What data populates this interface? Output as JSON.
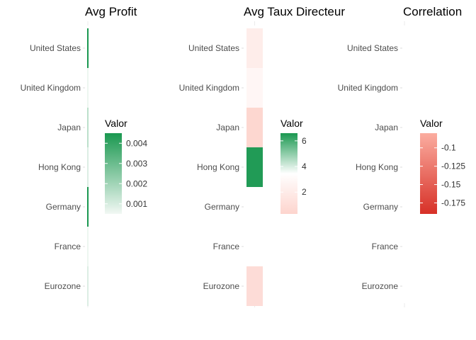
{
  "chart_data": [
    {
      "type": "heatmap",
      "title": "Avg Profit",
      "xlabel": "",
      "ylabel": "",
      "categories": [
        "United States",
        "United Kingdom",
        "Japan",
        "Hong Kong",
        "Germany",
        "France",
        "Eurozone"
      ],
      "values": [
        0.0045,
        0.0006,
        0.0015,
        0.0009,
        0.0045,
        0.0006,
        0.0009
      ],
      "legend": {
        "title": "Valor",
        "ticks": [
          0.001,
          0.002,
          0.003,
          0.004
        ],
        "range": [
          0.0005,
          0.0045
        ],
        "colors": [
          "#f2f8f4",
          "#1a9850"
        ],
        "placement": "right"
      },
      "grid": false
    },
    {
      "type": "heatmap",
      "title": "Avg Taux Directeur",
      "xlabel": "",
      "ylabel": "",
      "categories": [
        "United States",
        "United Kingdom",
        "Japan",
        "Hong Kong",
        "Germany",
        "France",
        "Eurozone"
      ],
      "values": [
        2.1,
        2.8,
        0.5,
        6.5,
        null,
        null,
        0.9
      ],
      "legend": {
        "title": "Valor",
        "ticks": [
          2,
          4,
          6
        ],
        "range": [
          0.3,
          6.6
        ],
        "colors": [
          "#fdd4cd",
          "#ffffff",
          "#1a9850"
        ],
        "placement": "right"
      },
      "grid": false
    },
    {
      "type": "heatmap",
      "title": "Correlation",
      "xlabel": "",
      "ylabel": "",
      "categories": [
        "United States",
        "United Kingdom",
        "Japan",
        "Hong Kong",
        "Germany",
        "France",
        "Eurozone"
      ],
      "values": [
        null,
        null,
        null,
        null,
        null,
        null,
        null
      ],
      "legend": {
        "title": "Valor",
        "ticks": [
          -0.1,
          -0.125,
          -0.15,
          -0.175
        ],
        "range": [
          -0.19,
          -0.08
        ],
        "colors": [
          "#d73027",
          "#fbada0"
        ],
        "placement": "right"
      },
      "grid": false
    }
  ]
}
